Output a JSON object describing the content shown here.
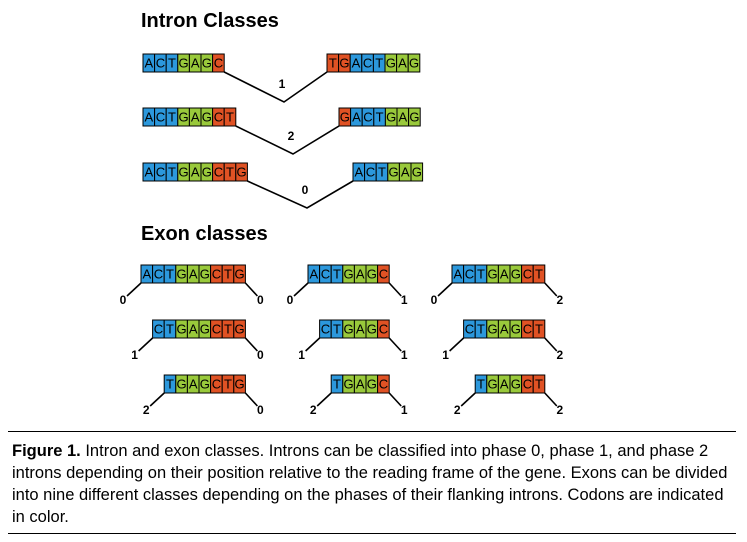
{
  "colors": {
    "blue": "#2c98dc",
    "green": "#99c93b",
    "red": "#e05224",
    "line": "#000000"
  },
  "intron_section": {
    "title": "Intron Classes",
    "rows": [
      {
        "left": "ACTGAGC",
        "right": "TGACTGAG",
        "phase": "1"
      },
      {
        "left": "ACTGAGCT",
        "right": "GACTGAG",
        "phase": "2"
      },
      {
        "left": "ACTGAGCTG",
        "right": "ACTGAG",
        "phase": "0"
      }
    ]
  },
  "exon_section": {
    "title": "Exon classes",
    "exons": [
      {
        "seq": "ACTGAGCTG",
        "left_phase": "0",
        "right_phase": "0"
      },
      {
        "seq": "ACTGAGC",
        "left_phase": "0",
        "right_phase": "1"
      },
      {
        "seq": "ACTGAGCT",
        "left_phase": "0",
        "right_phase": "2"
      },
      {
        "seq": "CTGAGCTG",
        "left_phase": "1",
        "right_phase": "0"
      },
      {
        "seq": "CTGAGC",
        "left_phase": "1",
        "right_phase": "1"
      },
      {
        "seq": "CTGAGCT",
        "left_phase": "1",
        "right_phase": "2"
      },
      {
        "seq": "TGAGCTG",
        "left_phase": "2",
        "right_phase": "0"
      },
      {
        "seq": "TGAGC",
        "left_phase": "2",
        "right_phase": "1"
      },
      {
        "seq": "TGAGCT",
        "left_phase": "2",
        "right_phase": "2"
      }
    ]
  },
  "caption": {
    "label": "Figure 1.",
    "text": " Intron and exon classes. Introns can be classified into phase 0, phase 1, and phase 2 introns depending on their position relative to the reading frame of the gene. Exons can be divided into nine different classes depending on the phases of their flanking introns. Codons are indicated in color."
  }
}
